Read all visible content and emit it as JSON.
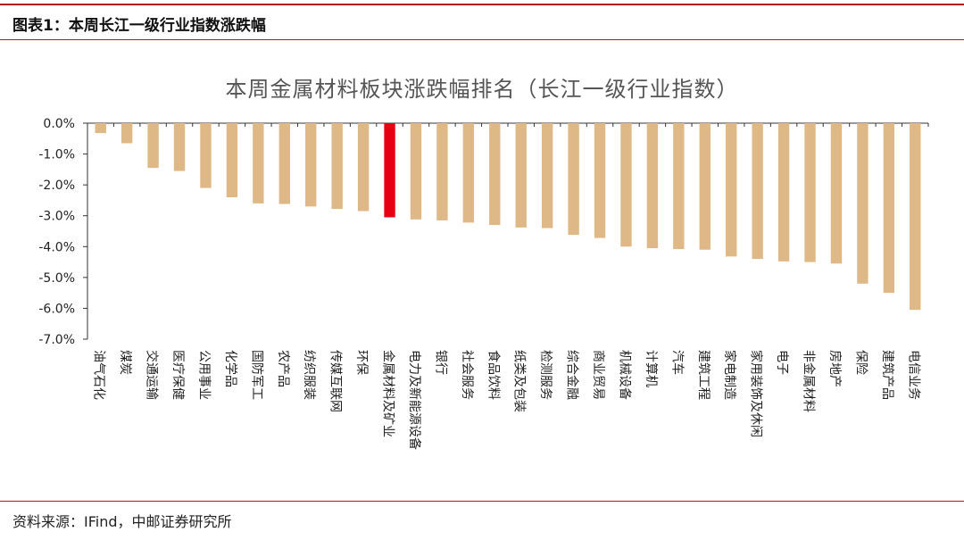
{
  "header": {
    "figure_title": "图表1：本周长江一级行业指数涨跌幅"
  },
  "footer": {
    "source": "资料来源：IFind，中邮证券研究所"
  },
  "colors": {
    "default_bar": "#deb887",
    "highlight_bar": "#e60012",
    "accent": "#b0171f"
  },
  "chart_data": {
    "type": "bar",
    "title": "本周金属材料板块涨跌幅排名（长江一级行业指数）",
    "xlabel": "",
    "ylabel": "",
    "ylim": [
      -7.0,
      0.0
    ],
    "yticks": [
      "0.0%",
      "-1.0%",
      "-2.0%",
      "-3.0%",
      "-4.0%",
      "-5.0%",
      "-6.0%",
      "-7.0%"
    ],
    "grid": false,
    "highlight": "金属材料及矿业",
    "categories": [
      "油气石化",
      "煤炭",
      "交通运输",
      "医疗保健",
      "公用事业",
      "化学品",
      "国防军工",
      "农产品",
      "纺织服装",
      "传媒互联网",
      "环保",
      "金属材料及矿业",
      "电力及新能源设备",
      "银行",
      "社会服务",
      "食品饮料",
      "纸类及包装",
      "检测服务",
      "综合金融",
      "商业贸易",
      "机械设备",
      "计算机",
      "汽车",
      "建筑工程",
      "家电制造",
      "家用装饰及休闲",
      "电子",
      "非金属材料",
      "房地产",
      "保险",
      "建筑产品",
      "电信业务"
    ],
    "values": [
      -0.32,
      -0.65,
      -1.45,
      -1.55,
      -2.1,
      -2.4,
      -2.6,
      -2.62,
      -2.7,
      -2.78,
      -2.85,
      -3.05,
      -3.12,
      -3.15,
      -3.22,
      -3.3,
      -3.38,
      -3.4,
      -3.62,
      -3.72,
      -4.0,
      -4.05,
      -4.08,
      -4.1,
      -4.32,
      -4.4,
      -4.48,
      -4.5,
      -4.55,
      -5.2,
      -5.5,
      -6.05
    ]
  }
}
